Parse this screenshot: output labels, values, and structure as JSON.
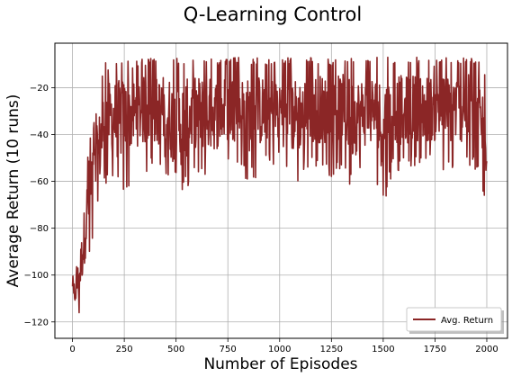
{
  "chart_data": {
    "type": "line",
    "title": "Q-Learning Control",
    "xlabel": "Number of Episodes",
    "ylabel": "Average Return (10 runs)",
    "xlim": [
      -85,
      2100
    ],
    "ylim": [
      -127,
      -1
    ],
    "xticks": [
      0,
      250,
      500,
      750,
      1000,
      1250,
      1500,
      1750,
      2000
    ],
    "yticks": [
      -120,
      -100,
      -80,
      -60,
      -40,
      -20
    ],
    "grid": true,
    "legend_position": "lower-right",
    "series": [
      {
        "name": "Avg. Return",
        "color": "#8b2626",
        "envelope": {
          "x": [
            0,
            10,
            20,
            30,
            40,
            50,
            60,
            70,
            80,
            90,
            100,
            110,
            120,
            130,
            140,
            150,
            160,
            175,
            200,
            225,
            250,
            275,
            300,
            325,
            350,
            375,
            400,
            450,
            500,
            550,
            600,
            650,
            700,
            750,
            800,
            850,
            900,
            950,
            1000,
            1050,
            1100,
            1150,
            1200,
            1250,
            1300,
            1350,
            1400,
            1450,
            1500,
            1550,
            1600,
            1650,
            1700,
            1750,
            1800,
            1850,
            1900,
            1950,
            2000
          ],
          "upper": [
            -98,
            -100,
            -95,
            -88,
            -82,
            -72,
            -62,
            -52,
            -42,
            -38,
            -35,
            -33,
            -26,
            -22,
            -15,
            -11,
            -9,
            -10,
            -9,
            -8,
            -7,
            -8,
            -9,
            -7,
            -8,
            -7,
            -8,
            -7,
            -7,
            -8,
            -7,
            -7,
            -8,
            -7,
            -7,
            -8,
            -7,
            -8,
            -7,
            -7,
            -8,
            -7,
            -7,
            -8,
            -7,
            -7,
            -8,
            -7,
            -7,
            -7,
            -7,
            -7,
            -7,
            -8,
            -7,
            -7,
            -7,
            -7,
            -14
          ],
          "lower": [
            -110,
            -118,
            -115,
            -120,
            -113,
            -110,
            -105,
            -100,
            -95,
            -90,
            -88,
            -90,
            -85,
            -75,
            -72,
            -68,
            -62,
            -60,
            -62,
            -66,
            -64,
            -62,
            -58,
            -57,
            -57,
            -55,
            -58,
            -56,
            -74,
            -64,
            -58,
            -62,
            -59,
            -56,
            -54,
            -61,
            -58,
            -56,
            -55,
            -63,
            -60,
            -55,
            -56,
            -58,
            -54,
            -65,
            -58,
            -57,
            -72,
            -55,
            -58,
            -54,
            -56,
            -55,
            -58,
            -55,
            -56,
            -57,
            -75
          ]
        }
      }
    ]
  }
}
